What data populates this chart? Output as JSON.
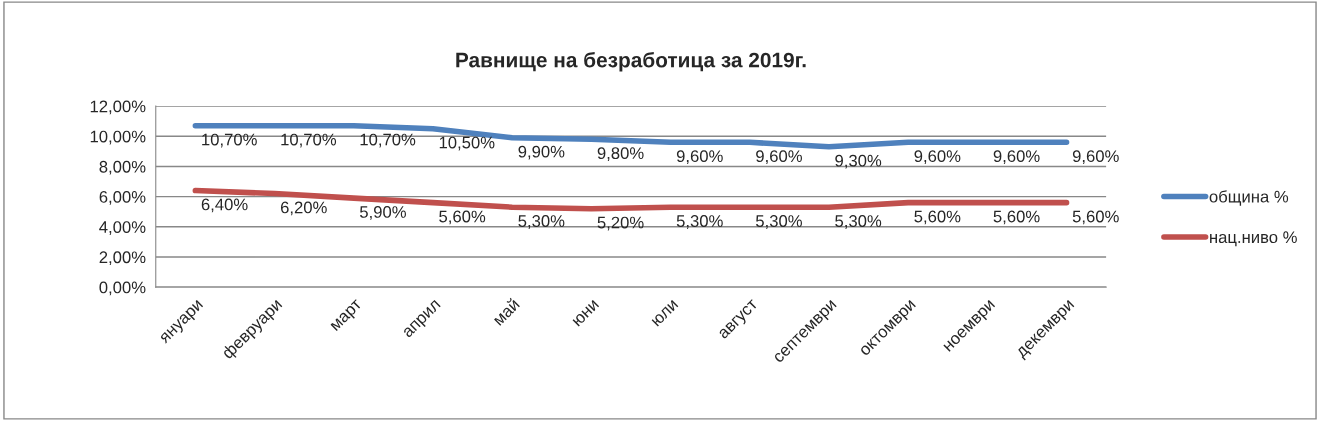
{
  "chart_data": {
    "type": "line",
    "title": "Равнище на безработица за 2019г.",
    "categories": [
      "януари",
      "февруари",
      "март",
      "април",
      "май",
      "юни",
      "юли",
      "август",
      "септември",
      "октомври",
      "ноември",
      "декември"
    ],
    "series": [
      {
        "name": "община %",
        "color": "#4f81bd",
        "values": [
          10.7,
          10.7,
          10.7,
          10.5,
          9.9,
          9.8,
          9.6,
          9.6,
          9.3,
          9.6,
          9.6,
          9.6
        ],
        "value_labels": [
          "10,70%",
          "10,70%",
          "10,70%",
          "10,50%",
          "9,90%",
          "9,80%",
          "9,60%",
          "9,60%",
          "9,30%",
          "9,60%",
          "9,60%",
          "9,60%"
        ]
      },
      {
        "name": "нац.ниво %",
        "color": "#c0504d",
        "values": [
          6.4,
          6.2,
          5.9,
          5.6,
          5.3,
          5.2,
          5.3,
          5.3,
          5.3,
          5.6,
          5.6,
          5.6
        ],
        "value_labels": [
          "6,40%",
          "6,20%",
          "5,90%",
          "5,60%",
          "5,30%",
          "5,20%",
          "5,30%",
          "5,30%",
          "5,30%",
          "5,60%",
          "5,60%",
          "5,60%"
        ]
      }
    ],
    "ylim": [
      0,
      12
    ],
    "yticks": [
      {
        "value": 0,
        "label": "0,00%"
      },
      {
        "value": 2,
        "label": "2,00%"
      },
      {
        "value": 4,
        "label": "4,00%"
      },
      {
        "value": 6,
        "label": "6,00%"
      },
      {
        "value": 8,
        "label": "8,00%"
      },
      {
        "value": 10,
        "label": "10,00%"
      },
      {
        "value": 12,
        "label": "12,00%"
      }
    ],
    "grid": "y",
    "legend": "right",
    "marker": "none",
    "line_style": "solid"
  }
}
